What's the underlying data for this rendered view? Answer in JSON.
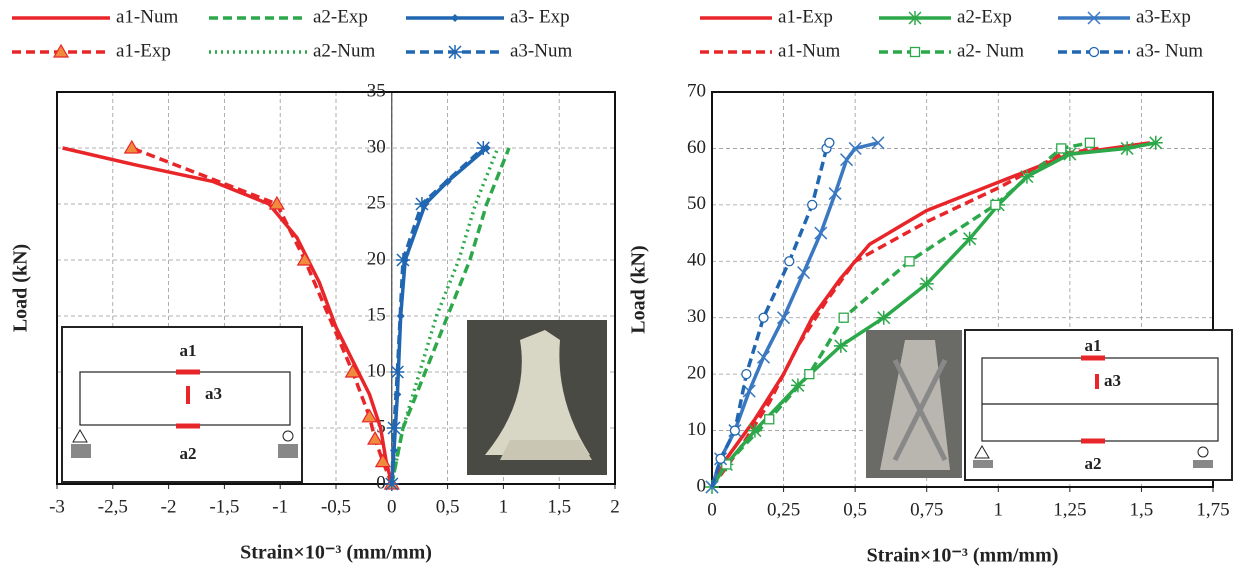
{
  "chart_data": [
    {
      "type": "line",
      "xlabel": "Strain×10⁻³ (mm/mm)",
      "ylabel": "Load (kN)",
      "xlim": [
        -3,
        2
      ],
      "ylim": [
        0,
        35
      ],
      "xticks": [
        -3,
        {
          "value": -2.5,
          "label": "-2,5"
        },
        -2,
        {
          "value": -1.5,
          "label": "-1,5"
        },
        -1,
        {
          "value": -0.5,
          "label": "-0,5"
        },
        0,
        {
          "value": 0.5,
          "label": "0,5"
        },
        1,
        {
          "value": 1.5,
          "label": "1,5"
        },
        2
      ],
      "yticks": [
        0,
        5,
        10,
        15,
        20,
        25,
        30,
        35
      ],
      "grid": true,
      "annotations": [
        "a1",
        "a3",
        "a2"
      ],
      "series": [
        {
          "name": "a1-Num",
          "color": "#e8262a",
          "linestyle": "solid",
          "marker": "none",
          "x": [
            0,
            -0.05,
            -0.1,
            -0.2,
            -0.35,
            -0.5,
            -0.65,
            -0.85,
            -1.1,
            -1.6,
            -2.3,
            -2.95
          ],
          "values": [
            0,
            2,
            5,
            8,
            11,
            14,
            18,
            22,
            25,
            27,
            28.5,
            30
          ]
        },
        {
          "name": "a1-Exp",
          "color": "#e8262a",
          "linestyle": "dashed",
          "marker": "triangle",
          "x": [
            0,
            -0.08,
            -0.15,
            -0.2,
            -0.35,
            -0.78,
            -1.03,
            -2.33
          ],
          "values": [
            0,
            2,
            4,
            6,
            10,
            20,
            25,
            30
          ]
        },
        {
          "name": "a2-Exp",
          "color": "#2ca84a",
          "linestyle": "dashed",
          "marker": "none",
          "x": [
            0,
            0.1,
            0.3,
            0.5,
            0.7,
            0.85,
            1.05
          ],
          "values": [
            0,
            5,
            10,
            15,
            20,
            25,
            30
          ]
        },
        {
          "name": "a2-Num",
          "color": "#2ca84a",
          "linestyle": "dotted",
          "marker": "none",
          "x": [
            0,
            0.1,
            0.25,
            0.4,
            0.6,
            0.75,
            0.95
          ],
          "values": [
            0,
            5,
            10,
            15,
            20,
            25,
            30
          ]
        },
        {
          "name": "a3- Exp",
          "color": "#2166b0",
          "linestyle": "solid",
          "marker": "diamond",
          "x": [
            0,
            0.02,
            0.05,
            0.08,
            0.12,
            0.3,
            0.5,
            0.85
          ],
          "values": [
            0,
            3,
            8,
            15,
            20,
            25,
            27,
            30
          ]
        },
        {
          "name": "a3-Num",
          "color": "#2166b0",
          "linestyle": "dashed",
          "marker": "star",
          "x": [
            0,
            0.02,
            0.05,
            0.1,
            0.27,
            0.82
          ],
          "values": [
            0,
            5,
            10,
            20,
            25,
            30
          ]
        }
      ]
    },
    {
      "type": "line",
      "xlabel": "Strain×10⁻³ (mm/mm)",
      "ylabel": "Load (kN)",
      "xlim": [
        0,
        1.75
      ],
      "ylim": [
        0,
        70
      ],
      "xticks": [
        0,
        {
          "value": 0.25,
          "label": "0,25"
        },
        {
          "value": 0.5,
          "label": "0,5"
        },
        {
          "value": 0.75,
          "label": "0,75"
        },
        1,
        {
          "value": 1.25,
          "label": "1,25"
        },
        {
          "value": 1.5,
          "label": "1,5"
        },
        {
          "value": 1.75,
          "label": "1,75"
        }
      ],
      "yticks": [
        0,
        10,
        20,
        30,
        40,
        50,
        60,
        70
      ],
      "grid": true,
      "annotations": [
        "a1",
        "a3",
        "a2"
      ],
      "series": [
        {
          "name": "a1-Exp",
          "color": "#e8262a",
          "linestyle": "solid",
          "marker": "none",
          "x": [
            0,
            0.05,
            0.15,
            0.25,
            0.35,
            0.45,
            0.55,
            0.75,
            1.0,
            1.25,
            1.53
          ],
          "values": [
            0,
            5,
            12,
            20,
            30,
            37,
            43,
            49,
            54,
            59,
            61
          ]
        },
        {
          "name": "a1-Num",
          "color": "#e8262a",
          "linestyle": "dashed",
          "marker": "none",
          "x": [
            0,
            0.1,
            0.2,
            0.3,
            0.4,
            0.5,
            0.75,
            1.0,
            1.22,
            1.35
          ],
          "values": [
            0,
            7,
            15,
            25,
            33,
            40,
            47,
            53,
            59,
            60
          ]
        },
        {
          "name": "a2-Exp",
          "color": "#2ca84a",
          "linestyle": "solid",
          "marker": "star",
          "x": [
            0,
            0.05,
            0.15,
            0.3,
            0.45,
            0.6,
            0.75,
            0.9,
            1.0,
            1.1,
            1.25,
            1.45,
            1.55
          ],
          "values": [
            0,
            4,
            10,
            18,
            25,
            30,
            36,
            44,
            50,
            55,
            59,
            60,
            61
          ]
        },
        {
          "name": "a2- Num",
          "color": "#2ca84a",
          "linestyle": "dashed",
          "marker": "square",
          "x": [
            0,
            0.05,
            0.2,
            0.34,
            0.46,
            0.69,
            0.99,
            1.22,
            1.32
          ],
          "values": [
            0,
            4,
            12,
            20,
            30,
            40,
            50,
            60,
            61
          ]
        },
        {
          "name": "a3-Exp",
          "color": "#3a78c2",
          "linestyle": "solid",
          "marker": "cross",
          "x": [
            0,
            0.03,
            0.08,
            0.13,
            0.18,
            0.25,
            0.32,
            0.38,
            0.43,
            0.47,
            0.5,
            0.58
          ],
          "values": [
            0,
            5,
            10,
            17,
            23,
            30,
            38,
            45,
            52,
            58,
            60,
            61
          ]
        },
        {
          "name": "a3- Num",
          "color": "#2166b0",
          "linestyle": "dashed",
          "marker": "circle",
          "x": [
            0,
            0.03,
            0.08,
            0.12,
            0.18,
            0.27,
            0.35,
            0.4,
            0.41
          ],
          "values": [
            0,
            5,
            10,
            20,
            30,
            40,
            50,
            60,
            61
          ]
        }
      ]
    }
  ]
}
